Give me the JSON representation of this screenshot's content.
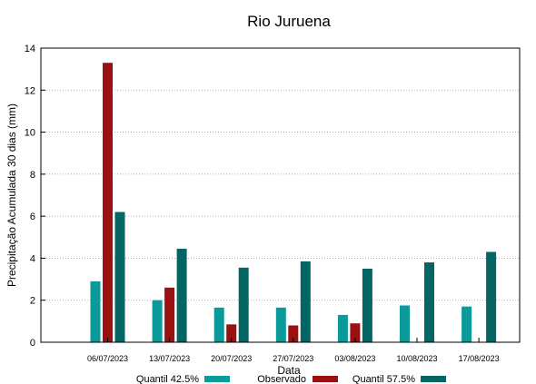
{
  "chart_data": {
    "type": "bar",
    "title": "Rio Juruena",
    "xlabel": "Data",
    "ylabel": "Precipitação Acumulada 30 dias (mm)",
    "ylim": [
      0,
      14
    ],
    "yticks": [
      "0",
      "2",
      "4",
      "6",
      "8",
      "10",
      "12",
      "14"
    ],
    "grid": "horizontal dotted",
    "legend_position": "bottom",
    "categories": [
      "06/07/2023",
      "13/07/2023",
      "20/07/2023",
      "27/07/2023",
      "03/08/2023",
      "10/08/2023",
      "17/08/2023"
    ],
    "series": [
      {
        "name": "Quantil 42.5%",
        "color": "#0a9a9a",
        "values": [
          2.9,
          2.0,
          1.65,
          1.65,
          1.3,
          1.75,
          1.7
        ]
      },
      {
        "name": "Observado",
        "color": "#9b1111",
        "values": [
          13.3,
          2.6,
          0.85,
          0.8,
          0.9,
          null,
          null
        ]
      },
      {
        "name": "Quantil 57.5%",
        "color": "#036665",
        "values": [
          6.2,
          4.45,
          3.55,
          3.85,
          3.5,
          3.8,
          4.3
        ]
      }
    ]
  }
}
